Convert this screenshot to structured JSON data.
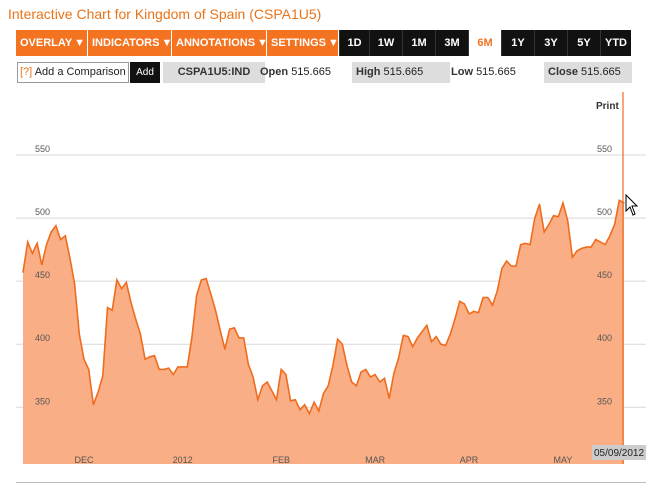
{
  "page": {
    "title": "Interactive Chart for Kingdom of Spain (CSPA1U5)"
  },
  "toolbar": {
    "menus": [
      "OVERLAY",
      "INDICATORS",
      "ANNOTATIONS",
      "SETTINGS"
    ],
    "menu_arrow": "▼",
    "ranges": [
      "1D",
      "1W",
      "1M",
      "3M",
      "6M",
      "1Y",
      "3Y",
      "5Y",
      "YTD"
    ],
    "active_range": "6M"
  },
  "quote": {
    "compare_icon": "[?]",
    "compare_label": "Add a Comparison",
    "add_label": "Add",
    "symbol": "CSPA1U5:IND",
    "open_label": "Open",
    "open": "515.665",
    "high_label": "High",
    "high": "515.665",
    "low_label": "Low",
    "low": "515.665",
    "close_label": "Close",
    "close": "515.665"
  },
  "chart": {
    "print_label": "Print",
    "date_label": "05/09/2012",
    "colors": {
      "fill": "#f9ae85",
      "line": "#ef6c1e",
      "accent": "#f37321",
      "grid": "#d8d8d8"
    },
    "cursor_icon": "mouse-pointer-icon"
  },
  "chart_data": {
    "type": "area",
    "title": "",
    "xlabel": "",
    "ylabel": "",
    "ylim": [
      305,
      600
    ],
    "yticks": [
      350,
      400,
      450,
      500,
      550
    ],
    "grid": true,
    "xticks": [
      {
        "label": "DEC",
        "x": 13
      },
      {
        "label": "2012",
        "x": 34
      },
      {
        "label": "FEB",
        "x": 55
      },
      {
        "label": "MAR",
        "x": 75
      },
      {
        "label": "APR",
        "x": 95
      },
      {
        "label": "MAY",
        "x": 115
      }
    ],
    "series": [
      {
        "values": [
          [
            0,
            457
          ],
          [
            1,
            481
          ],
          [
            2,
            472
          ],
          [
            3,
            480
          ],
          [
            4,
            463
          ],
          [
            5,
            479
          ],
          [
            6,
            489
          ],
          [
            7,
            494
          ],
          [
            8,
            483
          ],
          [
            9,
            486
          ],
          [
            10,
            468
          ],
          [
            11,
            448
          ],
          [
            12,
            408
          ],
          [
            13,
            388
          ],
          [
            14,
            380
          ],
          [
            15,
            352
          ],
          [
            16,
            362
          ],
          [
            17,
            375
          ],
          [
            18,
            429
          ],
          [
            19,
            427
          ],
          [
            20,
            451
          ],
          [
            21,
            444
          ],
          [
            22,
            449
          ],
          [
            23,
            433
          ],
          [
            24,
            420
          ],
          [
            25,
            408
          ],
          [
            26,
            388
          ],
          [
            27,
            390
          ],
          [
            28,
            391
          ],
          [
            29,
            380
          ],
          [
            30,
            380
          ],
          [
            31,
            381
          ],
          [
            32,
            376
          ],
          [
            33,
            382
          ],
          [
            34,
            382
          ],
          [
            35,
            382
          ],
          [
            36,
            406
          ],
          [
            37,
            439
          ],
          [
            38,
            451
          ],
          [
            39,
            452
          ],
          [
            40,
            440
          ],
          [
            41,
            427
          ],
          [
            42,
            411
          ],
          [
            43,
            396
          ],
          [
            44,
            412
          ],
          [
            45,
            413
          ],
          [
            46,
            405
          ],
          [
            47,
            405
          ],
          [
            48,
            384
          ],
          [
            49,
            374
          ],
          [
            50,
            356
          ],
          [
            51,
            367
          ],
          [
            52,
            370
          ],
          [
            53,
            363
          ],
          [
            54,
            356
          ],
          [
            55,
            380
          ],
          [
            56,
            376
          ],
          [
            57,
            355
          ],
          [
            58,
            356
          ],
          [
            59,
            348
          ],
          [
            60,
            352
          ],
          [
            61,
            345
          ],
          [
            62,
            354
          ],
          [
            63,
            347
          ],
          [
            64,
            361
          ],
          [
            65,
            367
          ],
          [
            66,
            383
          ],
          [
            67,
            404
          ],
          [
            68,
            400
          ],
          [
            69,
            383
          ],
          [
            70,
            370
          ],
          [
            71,
            367
          ],
          [
            72,
            378
          ],
          [
            73,
            380
          ],
          [
            74,
            374
          ],
          [
            75,
            376
          ],
          [
            76,
            370
          ],
          [
            77,
            373
          ],
          [
            78,
            357
          ],
          [
            79,
            377
          ],
          [
            80,
            389
          ],
          [
            81,
            407
          ],
          [
            82,
            406
          ],
          [
            83,
            398
          ],
          [
            84,
            405
          ],
          [
            85,
            410
          ],
          [
            86,
            415
          ],
          [
            87,
            402
          ],
          [
            88,
            406
          ],
          [
            89,
            400
          ],
          [
            90,
            399
          ],
          [
            91,
            408
          ],
          [
            92,
            420
          ],
          [
            93,
            434
          ],
          [
            94,
            432
          ],
          [
            95,
            424
          ],
          [
            96,
            426
          ],
          [
            97,
            425
          ],
          [
            98,
            437
          ],
          [
            99,
            437
          ],
          [
            100,
            431
          ],
          [
            101,
            442
          ],
          [
            102,
            460
          ],
          [
            103,
            466
          ],
          [
            104,
            462
          ],
          [
            105,
            462
          ],
          [
            106,
            479
          ],
          [
            107,
            480
          ],
          [
            108,
            479
          ],
          [
            109,
            500
          ],
          [
            110,
            511
          ],
          [
            111,
            489
          ],
          [
            112,
            495
          ],
          [
            113,
            502
          ],
          [
            114,
            501
          ],
          [
            115,
            512
          ],
          [
            116,
            498
          ],
          [
            117,
            469
          ],
          [
            118,
            474
          ],
          [
            119,
            476
          ],
          [
            120,
            477
          ],
          [
            121,
            477
          ],
          [
            122,
            483
          ],
          [
            123,
            481
          ],
          [
            124,
            479
          ],
          [
            125,
            486
          ],
          [
            126,
            495
          ],
          [
            127,
            514
          ],
          [
            128,
            512
          ]
        ]
      }
    ]
  }
}
